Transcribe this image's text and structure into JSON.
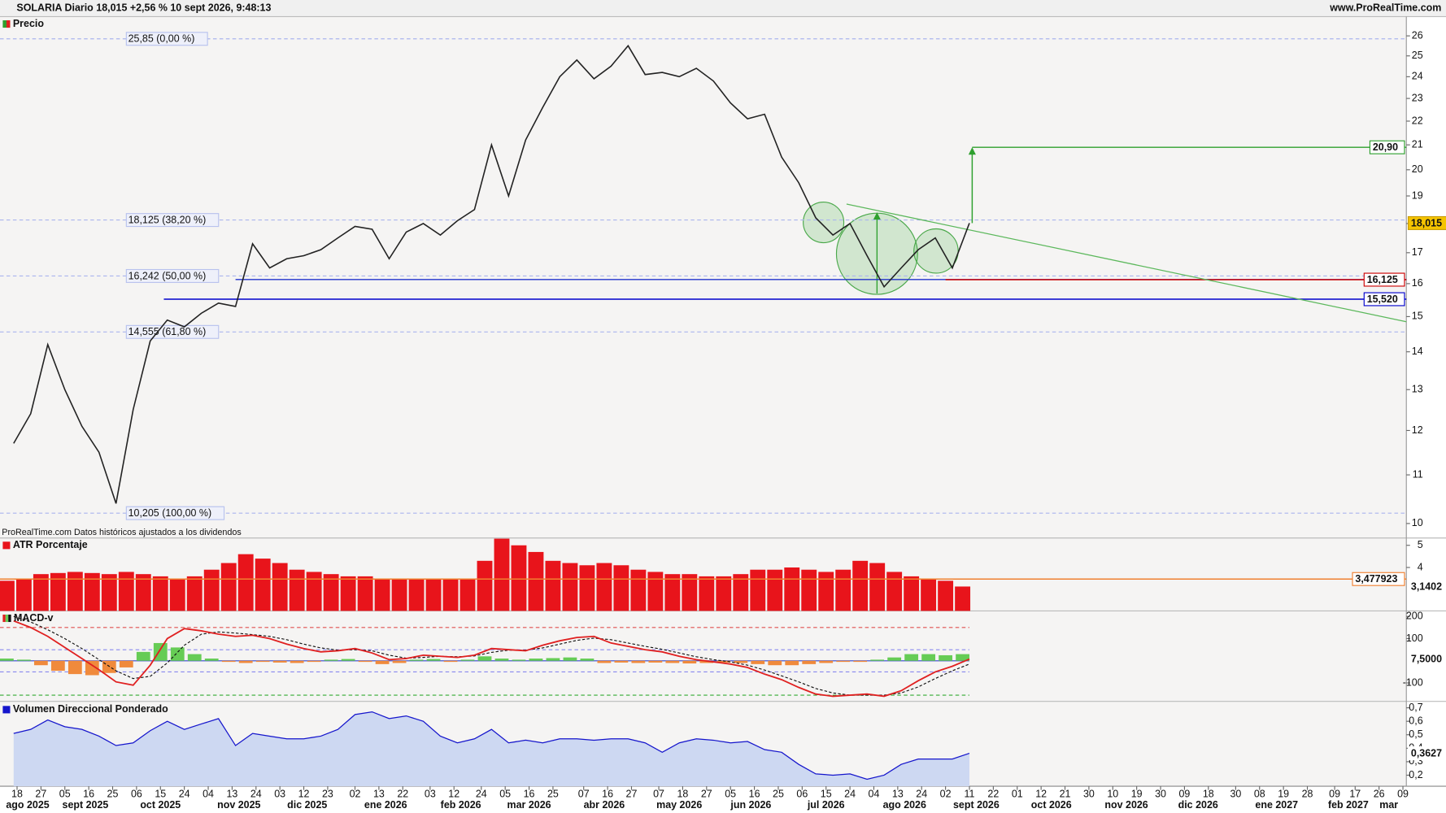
{
  "header": {
    "title": "SOLARIA Diario 18,015 +2,56 % 10 sept 2026, 9:48:13",
    "source": "www.ProRealTime.com"
  },
  "footnote": "ProRealTime.com Datos históricos ajustados a los dividendos",
  "chart_data": [
    {
      "type": "line",
      "title": "Precio",
      "log_scale": true,
      "color": "#222222",
      "x": [
        "2025-08-15",
        "2025-08-22",
        "2025-08-29",
        "2025-09-05",
        "2025-09-12",
        "2025-09-19",
        "2025-09-26",
        "2025-10-03",
        "2025-10-10",
        "2025-10-17",
        "2025-10-24",
        "2025-10-31",
        "2025-11-07",
        "2025-11-14",
        "2025-11-21",
        "2025-11-28",
        "2025-12-05",
        "2025-12-12",
        "2025-12-19",
        "2025-12-26",
        "2026-01-02",
        "2026-01-09",
        "2026-01-16",
        "2026-01-23",
        "2026-01-30",
        "2026-02-06",
        "2026-02-13",
        "2026-02-20",
        "2026-02-27",
        "2026-03-06",
        "2026-03-13",
        "2026-03-20",
        "2026-03-27",
        "2026-04-03",
        "2026-04-10",
        "2026-04-17",
        "2026-04-24",
        "2026-05-01",
        "2026-05-08",
        "2026-05-15",
        "2026-05-22",
        "2026-05-29",
        "2026-06-05",
        "2026-06-12",
        "2026-06-19",
        "2026-06-26",
        "2026-07-03",
        "2026-07-10",
        "2026-07-17",
        "2026-07-24",
        "2026-07-31",
        "2026-08-07",
        "2026-08-14",
        "2026-08-21",
        "2026-08-28",
        "2026-09-04",
        "2026-09-11"
      ],
      "values": [
        11.7,
        12.4,
        14.2,
        13.0,
        12.1,
        11.5,
        10.4,
        12.5,
        14.3,
        14.9,
        14.7,
        15.1,
        15.4,
        15.3,
        17.3,
        16.5,
        16.8,
        16.9,
        17.1,
        17.5,
        17.9,
        17.8,
        16.8,
        17.7,
        18.0,
        17.6,
        18.1,
        18.5,
        21.0,
        19.0,
        21.2,
        22.6,
        24.0,
        24.8,
        23.9,
        24.5,
        25.5,
        24.1,
        24.2,
        24.0,
        24.4,
        23.8,
        22.8,
        22.1,
        22.3,
        20.5,
        19.5,
        18.2,
        17.6,
        18.0,
        16.9,
        15.9,
        16.5,
        17.1,
        17.5,
        16.5,
        18.015
      ],
      "last_label": {
        "value": 18.015,
        "label": "18,015"
      },
      "ylim": [
        9.72,
        27.0
      ],
      "yticks": [
        10,
        11,
        12,
        13,
        14,
        15,
        16,
        17,
        18,
        19,
        20,
        21,
        22,
        23,
        24,
        25,
        26
      ],
      "fibonacci": [
        {
          "value": 25.85,
          "label": "25,85 (0,00 %)"
        },
        {
          "value": 18.125,
          "label": "18,125 (38,20 %)"
        },
        {
          "value": 16.242,
          "label": "16,242 (50,00 %)"
        },
        {
          "value": 14.555,
          "label": "14,555 (61,80 %)"
        },
        {
          "value": 10.205,
          "label": "10,205 (100,00 %)"
        }
      ],
      "levels": [
        {
          "value": 16.13,
          "color": "#2233cc",
          "from": "2025-11-14"
        },
        {
          "value": 16.125,
          "label": "16,125",
          "color": "#cc0000",
          "from": "2026-09-02"
        },
        {
          "value": 15.52,
          "label": "15,520",
          "color": "#0000cc",
          "from": "2025-10-16"
        }
      ],
      "trendline": {
        "x": [
          "2026-07-23",
          "2027-03-10"
        ],
        "values": [
          18.7,
          14.85
        ],
        "color": "#5cb85c"
      },
      "target": {
        "value": 20.9,
        "label": "20,90",
        "color": "#2ea02e"
      }
    },
    {
      "type": "bar",
      "title": "ATR Porcentaje",
      "color": "#e8141b",
      "values": [
        3.4,
        3.5,
        3.7,
        3.75,
        3.8,
        3.75,
        3.7,
        3.8,
        3.7,
        3.6,
        3.5,
        3.6,
        3.9,
        4.2,
        4.6,
        4.4,
        4.2,
        3.9,
        3.8,
        3.7,
        3.6,
        3.6,
        3.5,
        3.5,
        3.5,
        3.5,
        3.5,
        3.5,
        4.3,
        5.3,
        5.0,
        4.7,
        4.3,
        4.2,
        4.1,
        4.2,
        4.1,
        3.9,
        3.8,
        3.7,
        3.7,
        3.6,
        3.6,
        3.7,
        3.9,
        3.9,
        4.0,
        3.9,
        3.8,
        3.9,
        4.3,
        4.2,
        3.8,
        3.6,
        3.5,
        3.4,
        3.1402
      ],
      "last_label": {
        "value": 3.1402,
        "label": "3,1402"
      },
      "reference_line": {
        "value": 3.477923,
        "label": "3,477923",
        "color": "#f08030"
      },
      "ylim": [
        2.04,
        5.33
      ],
      "yticks": [
        4,
        5
      ]
    },
    {
      "type": "macd",
      "title": "MACD-v",
      "color": "#e02020",
      "signal_color": "#111111",
      "values": [
        180,
        150,
        110,
        60,
        10,
        -40,
        -95,
        -110,
        -20,
        100,
        145,
        135,
        120,
        110,
        115,
        100,
        75,
        55,
        40,
        45,
        55,
        35,
        5,
        10,
        25,
        20,
        15,
        25,
        55,
        50,
        45,
        70,
        90,
        105,
        110,
        80,
        65,
        50,
        40,
        20,
        5,
        -5,
        -15,
        -30,
        -60,
        -85,
        -120,
        -150,
        -160,
        -155,
        -150,
        -160,
        -135,
        -90,
        -50,
        -25,
        7.5
      ],
      "signal_values": [
        200,
        175,
        140,
        100,
        55,
        5,
        -45,
        -80,
        -70,
        -10,
        70,
        120,
        130,
        125,
        118,
        110,
        95,
        75,
        58,
        48,
        50,
        45,
        25,
        12,
        15,
        20,
        18,
        22,
        38,
        48,
        48,
        58,
        75,
        92,
        102,
        95,
        80,
        65,
        52,
        35,
        18,
        5,
        -5,
        -20,
        -42,
        -68,
        -95,
        -125,
        -145,
        -155,
        -155,
        -155,
        -145,
        -118,
        -80,
        -45,
        -15
      ],
      "histogram": [
        10,
        5,
        -20,
        -45,
        -60,
        -65,
        -55,
        -30,
        40,
        80,
        60,
        30,
        10,
        -5,
        -10,
        -5,
        -8,
        -10,
        -5,
        5,
        8,
        -5,
        -15,
        -10,
        5,
        8,
        -5,
        5,
        20,
        10,
        5,
        10,
        12,
        15,
        10,
        -10,
        -8,
        -10,
        -8,
        -10,
        -12,
        -10,
        -8,
        -10,
        -15,
        -20,
        -20,
        -15,
        -10,
        -5,
        -5,
        5,
        15,
        30,
        30,
        25,
        30
      ],
      "positive_color": "#66cc55",
      "negative_color": "#f08a3c",
      "last_label": {
        "value": 7.5,
        "label": "7,5000"
      },
      "levels": [
        {
          "value": 150,
          "color": "#e05050"
        },
        {
          "value": 50,
          "color": "#8888ee"
        },
        {
          "value": -50,
          "color": "#8888ee"
        },
        {
          "value": -155,
          "color": "#33aa33"
        }
      ],
      "ylim": [
        -183,
        225
      ],
      "yticks": [
        -100,
        100,
        200
      ]
    },
    {
      "type": "area",
      "title": "Volumen Direccional Ponderado",
      "color": "#1515cc",
      "fill": "#cdd8f2",
      "values": [
        0.51,
        0.54,
        0.61,
        0.56,
        0.54,
        0.49,
        0.42,
        0.44,
        0.53,
        0.6,
        0.54,
        0.58,
        0.62,
        0.42,
        0.51,
        0.49,
        0.47,
        0.47,
        0.49,
        0.54,
        0.65,
        0.67,
        0.62,
        0.64,
        0.6,
        0.49,
        0.44,
        0.47,
        0.54,
        0.44,
        0.46,
        0.44,
        0.47,
        0.47,
        0.46,
        0.47,
        0.47,
        0.44,
        0.37,
        0.44,
        0.47,
        0.46,
        0.44,
        0.45,
        0.39,
        0.37,
        0.28,
        0.21,
        0.2,
        0.21,
        0.17,
        0.2,
        0.28,
        0.32,
        0.32,
        0.32,
        0.3627
      ],
      "last_label": {
        "value": 0.3627,
        "label": "0,3627"
      },
      "ylim": [
        0.118,
        0.748
      ],
      "yticks": [
        {
          "value": 0.2,
          "label": "0,2"
        },
        {
          "value": 0.3,
          "label": "0,3"
        },
        {
          "value": 0.4,
          "label": "0,4"
        },
        {
          "value": 0.5,
          "label": "0,5"
        },
        {
          "value": 0.6,
          "label": "0,6"
        },
        {
          "value": 0.7,
          "label": "0,7"
        }
      ],
      "xlim": [
        "2025-08-11",
        "2027-03-10"
      ],
      "xticks": [
        {
          "value": "2025-08-18",
          "label": "18"
        },
        {
          "value": "2025-08-27",
          "label": "27"
        },
        {
          "value": "2025-09-05",
          "label": "05"
        },
        {
          "value": "2025-09-16",
          "label": "16"
        },
        {
          "value": "2025-09-25",
          "label": "25"
        },
        {
          "value": "2025-10-06",
          "label": "06"
        },
        {
          "value": "2025-10-15",
          "label": "15"
        },
        {
          "value": "2025-10-24",
          "label": "24"
        },
        {
          "value": "2025-11-04",
          "label": "04"
        },
        {
          "value": "2025-11-13",
          "label": "13"
        },
        {
          "value": "2025-11-24",
          "label": "24"
        },
        {
          "value": "2025-12-03",
          "label": "03"
        },
        {
          "value": "2025-12-12",
          "label": "12"
        },
        {
          "value": "2025-12-23",
          "label": "23"
        },
        {
          "value": "2026-01-02",
          "label": "02"
        },
        {
          "value": "2026-01-13",
          "label": "13"
        },
        {
          "value": "2026-01-22",
          "label": "22"
        },
        {
          "value": "2026-02-03",
          "label": "03"
        },
        {
          "value": "2026-02-12",
          "label": "12"
        },
        {
          "value": "2026-02-24",
          "label": "24"
        },
        {
          "value": "2026-03-05",
          "label": "05"
        },
        {
          "value": "2026-03-16",
          "label": "16"
        },
        {
          "value": "2026-03-25",
          "label": "25"
        },
        {
          "value": "2026-04-07",
          "label": "07"
        },
        {
          "value": "2026-04-16",
          "label": "16"
        },
        {
          "value": "2026-04-27",
          "label": "27"
        },
        {
          "value": "2026-05-07",
          "label": "07"
        },
        {
          "value": "2026-05-18",
          "label": "18"
        },
        {
          "value": "2026-05-27",
          "label": "27"
        },
        {
          "value": "2026-06-05",
          "label": "05"
        },
        {
          "value": "2026-06-16",
          "label": "16"
        },
        {
          "value": "2026-06-25",
          "label": "25"
        },
        {
          "value": "2026-07-06",
          "label": "06"
        },
        {
          "value": "2026-07-15",
          "label": "15"
        },
        {
          "value": "2026-07-24",
          "label": "24"
        },
        {
          "value": "2026-08-04",
          "label": "04"
        },
        {
          "value": "2026-08-13",
          "label": "13"
        },
        {
          "value": "2026-08-24",
          "label": "24"
        },
        {
          "value": "2026-09-02",
          "label": "02"
        },
        {
          "value": "2026-09-11",
          "label": "11"
        },
        {
          "value": "2026-09-22",
          "label": "22"
        },
        {
          "value": "2026-10-01",
          "label": "01"
        },
        {
          "value": "2026-10-12",
          "label": "12"
        },
        {
          "value": "2026-10-21",
          "label": "21"
        },
        {
          "value": "2026-10-30",
          "label": "30"
        },
        {
          "value": "2026-11-10",
          "label": "10"
        },
        {
          "value": "2026-11-19",
          "label": "19"
        },
        {
          "value": "2026-11-30",
          "label": "30"
        },
        {
          "value": "2026-12-09",
          "label": "09"
        },
        {
          "value": "2026-12-18",
          "label": "18"
        },
        {
          "value": "2026-12-30",
          "label": "30"
        },
        {
          "value": "2027-01-08",
          "label": "08"
        },
        {
          "value": "2027-01-19",
          "label": "19"
        },
        {
          "value": "2027-01-28",
          "label": "28"
        },
        {
          "value": "2027-02-09",
          "label": "09"
        },
        {
          "value": "2027-02-17",
          "label": "17"
        },
        {
          "value": "2027-02-26",
          "label": "26"
        },
        {
          "value": "2027-03-09",
          "label": "09"
        }
      ],
      "month_labels": [
        {
          "value": "2025-08",
          "label": "ago 2025"
        },
        {
          "value": "2025-09",
          "label": "sept 2025"
        },
        {
          "value": "2025-10",
          "label": "oct 2025"
        },
        {
          "value": "2025-11",
          "label": "nov 2025"
        },
        {
          "value": "2025-12",
          "label": "dic 2025"
        },
        {
          "value": "2026-01",
          "label": "ene 2026"
        },
        {
          "value": "2026-02",
          "label": "feb 2026"
        },
        {
          "value": "2026-03",
          "label": "mar 2026"
        },
        {
          "value": "2026-04",
          "label": "abr 2026"
        },
        {
          "value": "2026-05",
          "label": "may 2026"
        },
        {
          "value": "2026-06",
          "label": "jun 2026"
        },
        {
          "value": "2026-07",
          "label": "jul 2026"
        },
        {
          "value": "2026-08",
          "label": "ago 2026"
        },
        {
          "value": "2026-09",
          "label": "sept 2026"
        },
        {
          "value": "2026-10",
          "label": "oct 2026"
        },
        {
          "value": "2026-11",
          "label": "nov 2026"
        },
        {
          "value": "2026-12",
          "label": "dic 2026"
        },
        {
          "value": "2027-01",
          "label": "ene 2027"
        },
        {
          "value": "2027-02",
          "label": "feb 2027"
        },
        {
          "value": "2027-03",
          "label": "mar"
        }
      ]
    }
  ]
}
